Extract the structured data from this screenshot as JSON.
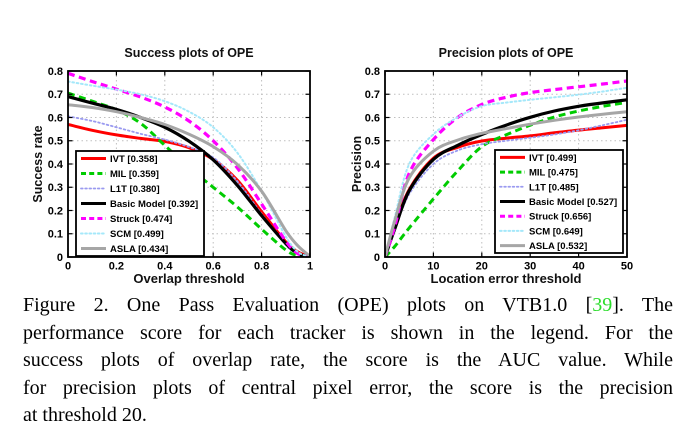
{
  "figure": {
    "caption": {
      "ref_color": "#2bdd2b",
      "lines": [
        {
          "pre": "Figure 2. One Pass Evaluation (OPE) plots on VTB1.0 [",
          "ref": "39",
          "post": "]. The"
        },
        {
          "pre": "performance score for each tracker is shown in the legend. For the"
        },
        {
          "pre": "success plots of overlap rate, the score is the AUC value. While"
        },
        {
          "pre": "for precision plots of central pixel error, the score is the precision"
        },
        {
          "pre": "at threshold 20."
        }
      ]
    }
  },
  "chart_data": [
    {
      "type": "line",
      "title": "Success plots of OPE",
      "xlabel": "Overlap threshold",
      "ylabel": "Success rate",
      "xlim": [
        0,
        1
      ],
      "ylim": [
        0,
        0.8
      ],
      "xticks": [
        0,
        0.2,
        0.4,
        0.6,
        0.8,
        1
      ],
      "xtick_labels": [
        "0",
        "0.2",
        "0.4",
        "0.6",
        "0.8",
        "1"
      ],
      "yticks": [
        0,
        0.1,
        0.2,
        0.3,
        0.4,
        0.5,
        0.6,
        0.7,
        0.8
      ],
      "ytick_labels": [
        "0",
        "0.1",
        "0.2",
        "0.3",
        "0.4",
        "0.5",
        "0.6",
        "0.7",
        "0.8"
      ],
      "grid": true,
      "legend_position": "bottom-left",
      "x": [
        0,
        0.1,
        0.2,
        0.3,
        0.4,
        0.5,
        0.6,
        0.7,
        0.8,
        0.9,
        0.95,
        1
      ],
      "series": [
        {
          "name": "IVT",
          "score": "0.358",
          "color": "#ff0000",
          "style": "solid",
          "width": 3,
          "values": [
            0.57,
            0.545,
            0.525,
            0.51,
            0.497,
            0.47,
            0.42,
            0.33,
            0.195,
            0.065,
            0.022,
            0
          ]
        },
        {
          "name": "MIL",
          "score": "0.359",
          "color": "#00cc00",
          "style": "dashed",
          "width": 3,
          "values": [
            0.705,
            0.67,
            0.633,
            0.575,
            0.48,
            0.385,
            0.3,
            0.215,
            0.12,
            0.03,
            0.005,
            0
          ]
        },
        {
          "name": "L1T",
          "score": "0.380",
          "color": "#9a9af0",
          "style": "dotted",
          "width": 1.8,
          "values": [
            0.605,
            0.585,
            0.558,
            0.53,
            0.505,
            0.473,
            0.428,
            0.325,
            0.185,
            0.052,
            0.013,
            0
          ]
        },
        {
          "name": "Basic Model",
          "score": "0.392",
          "color": "#000000",
          "style": "solid",
          "width": 3.2,
          "values": [
            0.69,
            0.662,
            0.635,
            0.6,
            0.558,
            0.498,
            0.418,
            0.308,
            0.178,
            0.058,
            0.015,
            0
          ]
        },
        {
          "name": "Struck",
          "score": "0.474",
          "color": "#ff00ff",
          "style": "dashed",
          "width": 3.2,
          "values": [
            0.79,
            0.755,
            0.722,
            0.688,
            0.645,
            0.585,
            0.5,
            0.383,
            0.228,
            0.068,
            0.015,
            0
          ]
        },
        {
          "name": "SCM",
          "score": "0.499",
          "color": "#a5e8fa",
          "style": "dotted",
          "width": 2,
          "values": [
            0.755,
            0.737,
            0.72,
            0.7,
            0.67,
            0.625,
            0.558,
            0.448,
            0.283,
            0.088,
            0.022,
            0
          ]
        },
        {
          "name": "ASLA",
          "score": "0.434",
          "color": "#a6a6a6",
          "style": "solid",
          "width": 3,
          "values": [
            0.655,
            0.643,
            0.625,
            0.6,
            0.57,
            0.528,
            0.475,
            0.398,
            0.283,
            0.113,
            0.048,
            0.003
          ]
        }
      ]
    },
    {
      "type": "line",
      "title": "Precision plots of OPE",
      "xlabel": "Location error threshold",
      "ylabel": "Precision",
      "xlim": [
        0,
        50
      ],
      "ylim": [
        0,
        0.8
      ],
      "xticks": [
        0,
        10,
        20,
        30,
        40,
        50
      ],
      "xtick_labels": [
        "0",
        "10",
        "20",
        "30",
        "40",
        "50"
      ],
      "yticks": [
        0,
        0.1,
        0.2,
        0.3,
        0.4,
        0.5,
        0.6,
        0.7,
        0.8
      ],
      "ytick_labels": [
        "0",
        "0.1",
        "0.2",
        "0.3",
        "0.4",
        "0.5",
        "0.6",
        "0.7",
        "0.8"
      ],
      "grid": true,
      "legend_position": "bottom-right",
      "x": [
        0,
        2,
        5,
        10,
        15,
        20,
        25,
        30,
        35,
        40,
        45,
        50
      ],
      "series": [
        {
          "name": "IVT",
          "score": "0.499",
          "color": "#ff0000",
          "style": "solid",
          "width": 3,
          "values": [
            0,
            0.13,
            0.29,
            0.425,
            0.472,
            0.499,
            0.511,
            0.521,
            0.534,
            0.546,
            0.556,
            0.566
          ]
        },
        {
          "name": "MIL",
          "score": "0.475",
          "color": "#00cc00",
          "style": "dashed",
          "width": 3,
          "values": [
            0,
            0.045,
            0.125,
            0.25,
            0.37,
            0.475,
            0.525,
            0.567,
            0.602,
            0.628,
            0.648,
            0.665
          ]
        },
        {
          "name": "L1T",
          "score": "0.485",
          "color": "#9a9af0",
          "style": "dotted",
          "width": 1.8,
          "values": [
            0,
            0.115,
            0.27,
            0.4,
            0.458,
            0.485,
            0.5,
            0.513,
            0.527,
            0.545,
            0.567,
            0.59
          ]
        },
        {
          "name": "Basic Model",
          "score": "0.527",
          "color": "#000000",
          "style": "solid",
          "width": 3.2,
          "values": [
            0,
            0.12,
            0.285,
            0.42,
            0.48,
            0.527,
            0.567,
            0.601,
            0.628,
            0.648,
            0.663,
            0.676
          ]
        },
        {
          "name": "Struck",
          "score": "0.656",
          "color": "#ff00ff",
          "style": "dashed",
          "width": 3.2,
          "values": [
            0,
            0.13,
            0.36,
            0.505,
            0.6,
            0.656,
            0.687,
            0.707,
            0.72,
            0.732,
            0.744,
            0.757
          ]
        },
        {
          "name": "SCM",
          "score": "0.649",
          "color": "#a5e8fa",
          "style": "dotted",
          "width": 2,
          "values": [
            0,
            0.17,
            0.4,
            0.528,
            0.601,
            0.649,
            0.664,
            0.676,
            0.687,
            0.698,
            0.712,
            0.728
          ]
        },
        {
          "name": "ASLA",
          "score": "0.532",
          "color": "#a6a6a6",
          "style": "solid",
          "width": 3,
          "values": [
            0,
            0.155,
            0.34,
            0.455,
            0.503,
            0.532,
            0.552,
            0.571,
            0.588,
            0.602,
            0.614,
            0.625
          ]
        }
      ]
    }
  ]
}
